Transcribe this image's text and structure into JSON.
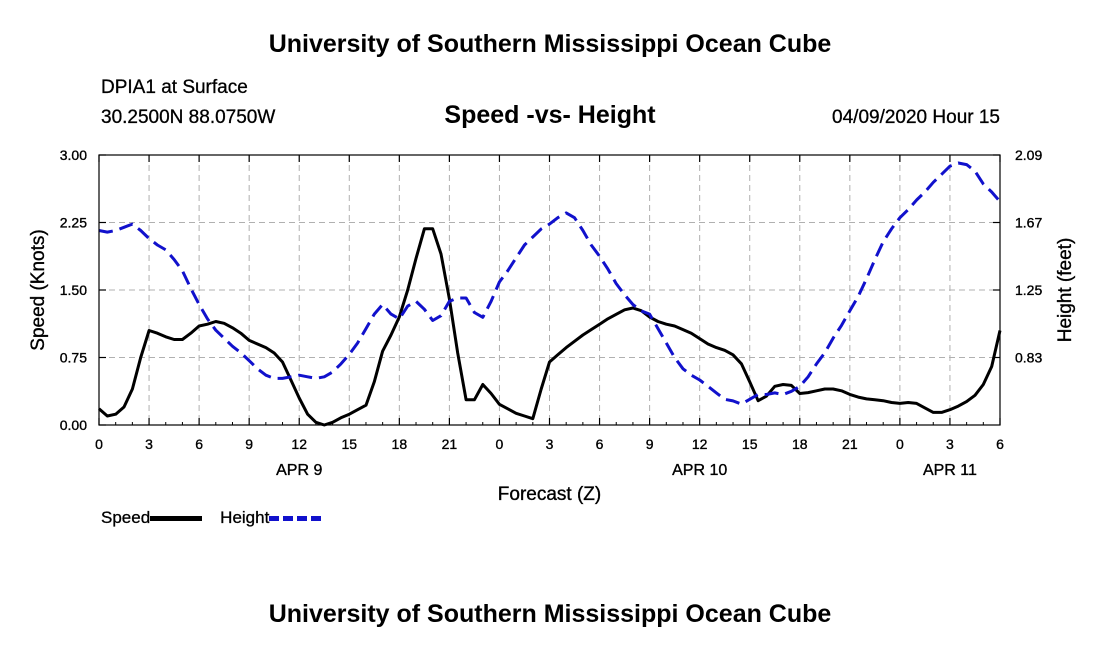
{
  "header": {
    "title": "University of Southern Mississippi Ocean Cube",
    "station": "DPIA1 at Surface",
    "coords": "30.2500N 88.0750W",
    "subtitle": "Speed -vs- Height",
    "valid": "04/09/2020 Hour 15"
  },
  "footer": {
    "title": "University of Southern Mississippi Ocean Cube"
  },
  "legend": {
    "speed_label": "Speed",
    "height_label": "Height"
  },
  "colors": {
    "speed": "#000000",
    "height": "#1111cc",
    "grid": "#b0b0b0"
  },
  "chart_data": {
    "type": "line",
    "title": "Speed -vs- Height",
    "xlabel": "Forecast (Z)",
    "ylabel": "Speed (Knots)",
    "y2label": "Height (feet)",
    "xlim": [
      0,
      54
    ],
    "ylim": [
      0,
      3.0
    ],
    "y2lim": [
      0.41,
      2.09
    ],
    "grid": true,
    "legend_position": "bottom-left",
    "x_ticks": [
      0,
      3,
      6,
      9,
      12,
      15,
      18,
      21,
      24,
      27,
      30,
      33,
      36,
      39,
      42,
      45,
      48,
      51,
      54
    ],
    "x_tick_labels": [
      "0",
      "3",
      "6",
      "9",
      "12",
      "15",
      "18",
      "21",
      "0",
      "3",
      "6",
      "9",
      "12",
      "15",
      "18",
      "21",
      "0",
      "3",
      "6"
    ],
    "date_labels": [
      {
        "x": 12,
        "label": "APR 9"
      },
      {
        "x": 36,
        "label": "APR 10"
      },
      {
        "x": 51,
        "label": "APR 11"
      }
    ],
    "y_ticks": [
      0,
      0.75,
      1.5,
      2.25,
      3.0
    ],
    "y_tick_labels": [
      "0.00",
      "0.75",
      "1.50",
      "2.25",
      "3.00"
    ],
    "y2_ticks": [
      0.83,
      1.25,
      1.67,
      2.09
    ],
    "y2_tick_labels": [
      "0.83",
      "1.25",
      "1.67",
      "2.09"
    ],
    "series": [
      {
        "name": "Speed",
        "axis": "left",
        "x": [
          0,
          0.5,
          1,
          1.5,
          2,
          2.5,
          3,
          3.5,
          4,
          4.5,
          5,
          5.5,
          6,
          6.5,
          7,
          7.5,
          8,
          8.5,
          9,
          9.5,
          10,
          10.5,
          11,
          11.5,
          12,
          12.5,
          13,
          13.5,
          14,
          14.5,
          15,
          15.5,
          16,
          16.5,
          17,
          17.5,
          18,
          18.5,
          19,
          19.5,
          20,
          20.5,
          21,
          21.5,
          22,
          22.5,
          23,
          23.5,
          24,
          24.5,
          25,
          25.5,
          26,
          26.5,
          27,
          27.5,
          28,
          28.5,
          29,
          29.5,
          30,
          30.5,
          31,
          31.5,
          32,
          32.5,
          33,
          33.5,
          34,
          34.5,
          35,
          35.5,
          36,
          36.5,
          37,
          37.5,
          38,
          38.5,
          39,
          39.5,
          40,
          40.5,
          41,
          41.5,
          42,
          42.5,
          43,
          43.5,
          44,
          44.5,
          45,
          45.5,
          46,
          46.5,
          47,
          47.5,
          48,
          48.5,
          49,
          49.5,
          50,
          50.5,
          51,
          51.5,
          52,
          52.5,
          53,
          53.5,
          54
        ],
        "values": [
          0.18,
          0.1,
          0.12,
          0.2,
          0.4,
          0.75,
          1.05,
          1.02,
          0.98,
          0.95,
          0.95,
          1.02,
          1.1,
          1.12,
          1.15,
          1.13,
          1.08,
          1.02,
          0.94,
          0.9,
          0.86,
          0.8,
          0.7,
          0.5,
          0.3,
          0.12,
          0.03,
          0.0,
          0.03,
          0.08,
          0.12,
          0.17,
          0.22,
          0.48,
          0.82,
          1.0,
          1.2,
          1.5,
          1.85,
          2.18,
          2.18,
          1.9,
          1.4,
          0.8,
          0.28,
          0.28,
          0.45,
          0.35,
          0.23,
          0.18,
          0.13,
          0.1,
          0.07,
          0.4,
          0.7,
          0.78,
          0.86,
          0.93,
          1.0,
          1.06,
          1.12,
          1.18,
          1.23,
          1.28,
          1.3,
          1.27,
          1.2,
          1.15,
          1.12,
          1.1,
          1.06,
          1.02,
          0.96,
          0.9,
          0.86,
          0.83,
          0.78,
          0.68,
          0.48,
          0.27,
          0.32,
          0.43,
          0.45,
          0.44,
          0.35,
          0.36,
          0.38,
          0.4,
          0.4,
          0.38,
          0.34,
          0.31,
          0.29,
          0.28,
          0.27,
          0.25,
          0.24,
          0.25,
          0.24,
          0.19,
          0.14,
          0.14,
          0.17,
          0.21,
          0.26,
          0.33,
          0.45,
          0.65,
          1.05
        ]
      },
      {
        "name": "Height",
        "axis": "right",
        "x": [
          0,
          0.5,
          1,
          1.5,
          2,
          2.5,
          3,
          3.5,
          4,
          4.5,
          5,
          5.5,
          6,
          6.5,
          7,
          7.5,
          8,
          8.5,
          9,
          9.5,
          10,
          10.5,
          11,
          11.5,
          12,
          12.5,
          13,
          13.5,
          14,
          14.5,
          15,
          15.5,
          16,
          16.5,
          17,
          17.5,
          18,
          18.5,
          19,
          19.5,
          20,
          20.5,
          21,
          21.5,
          22,
          22.5,
          23,
          23.5,
          24,
          24.5,
          25,
          25.5,
          26,
          26.5,
          27,
          27.5,
          28,
          28.5,
          29,
          29.5,
          30,
          30.5,
          31,
          31.5,
          32,
          32.5,
          33,
          33.5,
          34,
          34.5,
          35,
          35.5,
          36,
          36.5,
          37,
          37.5,
          38,
          38.5,
          39,
          39.5,
          40,
          40.5,
          41,
          41.5,
          42,
          42.5,
          43,
          43.5,
          44,
          44.5,
          45,
          45.5,
          46,
          46.5,
          47,
          47.5,
          48,
          48.5,
          49,
          49.5,
          50,
          50.5,
          51,
          51.5,
          52,
          52.5,
          53,
          53.5,
          54
        ],
        "values": [
          1.62,
          1.61,
          1.62,
          1.64,
          1.66,
          1.62,
          1.57,
          1.53,
          1.5,
          1.44,
          1.37,
          1.26,
          1.16,
          1.07,
          1.0,
          0.95,
          0.9,
          0.86,
          0.81,
          0.76,
          0.72,
          0.7,
          0.7,
          0.71,
          0.72,
          0.71,
          0.7,
          0.71,
          0.74,
          0.79,
          0.85,
          0.92,
          1.01,
          1.1,
          1.16,
          1.1,
          1.07,
          1.15,
          1.18,
          1.13,
          1.06,
          1.09,
          1.18,
          1.2,
          1.2,
          1.11,
          1.08,
          1.18,
          1.3,
          1.37,
          1.45,
          1.53,
          1.58,
          1.63,
          1.66,
          1.7,
          1.73,
          1.7,
          1.62,
          1.53,
          1.46,
          1.38,
          1.29,
          1.22,
          1.16,
          1.12,
          1.1,
          1.01,
          0.92,
          0.83,
          0.76,
          0.72,
          0.69,
          0.65,
          0.61,
          0.57,
          0.56,
          0.54,
          0.57,
          0.6,
          0.6,
          0.61,
          0.6,
          0.62,
          0.65,
          0.71,
          0.79,
          0.86,
          0.95,
          1.03,
          1.12,
          1.21,
          1.32,
          1.44,
          1.55,
          1.63,
          1.7,
          1.75,
          1.81,
          1.86,
          1.92,
          1.97,
          2.02,
          2.04,
          2.03,
          1.99,
          1.91,
          1.86,
          1.8
        ]
      }
    ]
  }
}
